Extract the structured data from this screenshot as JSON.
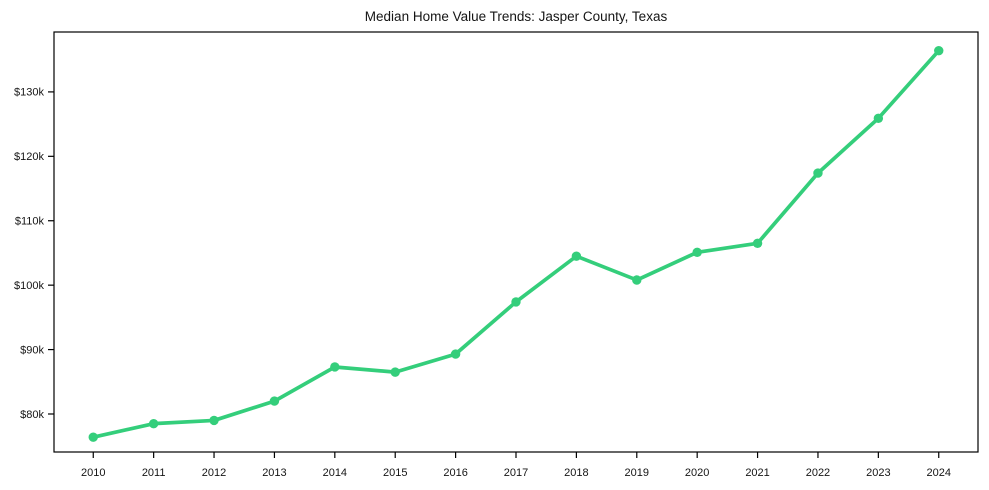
{
  "chart_data": {
    "type": "line",
    "title": "Median Home Value Trends: Jasper County, Texas",
    "xlabel": "",
    "ylabel": "",
    "x": [
      2010,
      2011,
      2012,
      2013,
      2014,
      2015,
      2016,
      2017,
      2018,
      2019,
      2020,
      2021,
      2022,
      2023,
      2024
    ],
    "series": [
      {
        "values": [
          76400,
          78500,
          79000,
          82000,
          87300,
          86500,
          89300,
          97400,
          104500,
          100800,
          105100,
          106500,
          117400,
          125900,
          136400
        ]
      }
    ],
    "x_tick_labels": [
      "2010",
      "2011",
      "2012",
      "2013",
      "2014",
      "2015",
      "2016",
      "2017",
      "2018",
      "2019",
      "2020",
      "2021",
      "2022",
      "2023",
      "2024"
    ],
    "y_ticks": [
      80000,
      90000,
      100000,
      110000,
      120000,
      130000
    ],
    "y_tick_labels": [
      "$80k",
      "$90k",
      "$100k",
      "$110k",
      "$120k",
      "$130k"
    ],
    "xlim": [
      2009.35,
      2024.65
    ],
    "ylim": [
      74100,
      139300
    ],
    "grid": false,
    "legend": null,
    "line_color": "#34ce7b",
    "marker": "circle",
    "axis_color": "#000000",
    "background_color": "#ffffff"
  }
}
